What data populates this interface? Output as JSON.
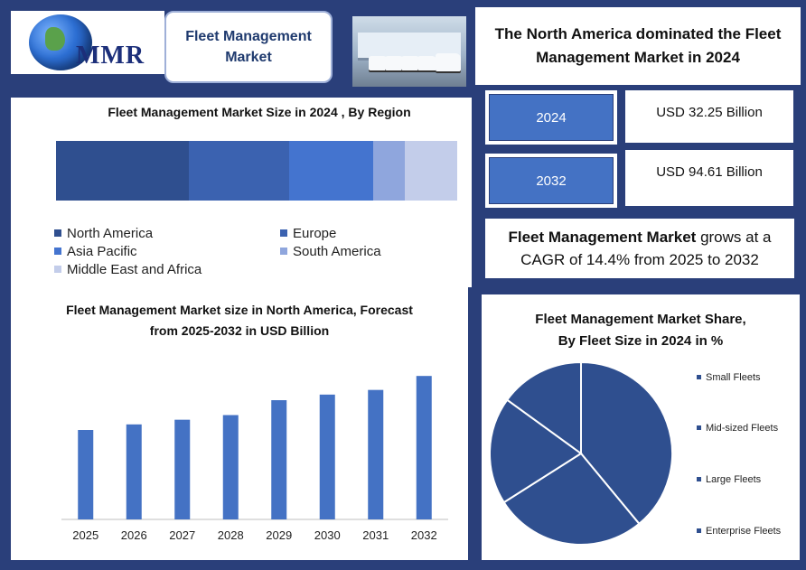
{
  "logo": {
    "text": "MMR"
  },
  "header": {
    "title": "Fleet Management Market",
    "headline": "The North America dominated the Fleet Management Market in 2024"
  },
  "stats": {
    "year1": "2024",
    "value1": "USD 32.25 Billion",
    "year2": "2032",
    "value2": "USD 94.61 Billion",
    "cagr_bold": "Fleet Management Market",
    "cagr_rest": " grows at a CAGR of 14.4% from 2025 to 2032"
  },
  "colors": {
    "background": "#2a3f7a",
    "bar": "#4472c4",
    "north_america": "#2f4f8f",
    "europe": "#3b62b0",
    "asia_pacific": "#4474cf",
    "south_america": "#8fa6dd",
    "mea": "#c3cdea"
  },
  "chart_data": [
    {
      "type": "bar",
      "orientation": "stacked-horizontal-100",
      "title": "Fleet Management Market Size in 2024 , By Region",
      "series": [
        {
          "name": "North America",
          "values": [
            33
          ]
        },
        {
          "name": "Europe",
          "values": [
            25
          ]
        },
        {
          "name": "Asia Pacific",
          "values": [
            21
          ]
        },
        {
          "name": "South America",
          "values": [
            8
          ]
        },
        {
          "name": "Middle East and Africa",
          "values": [
            13
          ]
        }
      ],
      "legend_position": "bottom"
    },
    {
      "type": "bar",
      "title": "Fleet Management Market size in North America, Forecast from 2025-2032 in USD Billion",
      "categories": [
        "2025",
        "2026",
        "2027",
        "2028",
        "2029",
        "2030",
        "2031",
        "2032"
      ],
      "values": [
        9.6,
        10.2,
        10.7,
        11.2,
        12.8,
        13.4,
        13.9,
        15.4
      ],
      "ylim": [
        0,
        16
      ],
      "grid": false
    },
    {
      "type": "pie",
      "title": "Fleet Management Market Share, By Fleet Size in 2024 in %",
      "labels": [
        "Small Fleets",
        "Mid-sized Fleets",
        "Large Fleets",
        "Enterprise Fleets"
      ],
      "values": [
        39,
        27,
        19,
        15
      ],
      "legend_position": "right"
    }
  ]
}
